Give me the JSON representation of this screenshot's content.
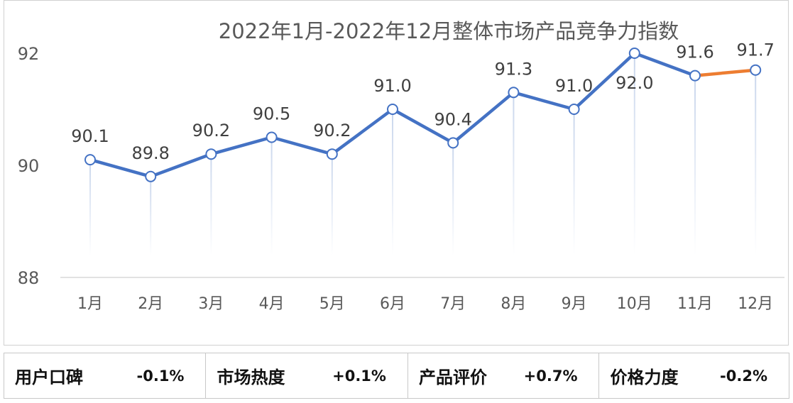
{
  "chart_data": {
    "type": "line",
    "title": "2022年1月-2022年12月整体市场产品竞争力指数",
    "categories": [
      "1月",
      "2月",
      "3月",
      "4月",
      "5月",
      "6月",
      "7月",
      "8月",
      "9月",
      "10月",
      "11月",
      "12月"
    ],
    "values": [
      90.1,
      89.8,
      90.2,
      90.5,
      90.2,
      91.0,
      90.4,
      91.3,
      91.0,
      92.0,
      91.6,
      91.7
    ],
    "data_labels": [
      "90.1",
      "89.8",
      "90.2",
      "90.5",
      "90.2",
      "91.0",
      "90.4",
      "91.3",
      "91.0",
      "92.0",
      "91.6",
      "91.7"
    ],
    "ylim": [
      88,
      92
    ],
    "yticks": [
      "88",
      "90",
      "92"
    ],
    "grid": false,
    "legend": "none",
    "colors": {
      "line": "#4472c4",
      "last_segment": "#ed7d31",
      "drop_line": "#c9d6ec",
      "text": "#404040"
    }
  },
  "summary": [
    {
      "label": "用户口碑",
      "value": "-0.1%"
    },
    {
      "label": "市场热度",
      "value": "+0.1%"
    },
    {
      "label": "产品评价",
      "value": "+0.7%"
    },
    {
      "label": "价格力度",
      "value": "-0.2%"
    }
  ]
}
